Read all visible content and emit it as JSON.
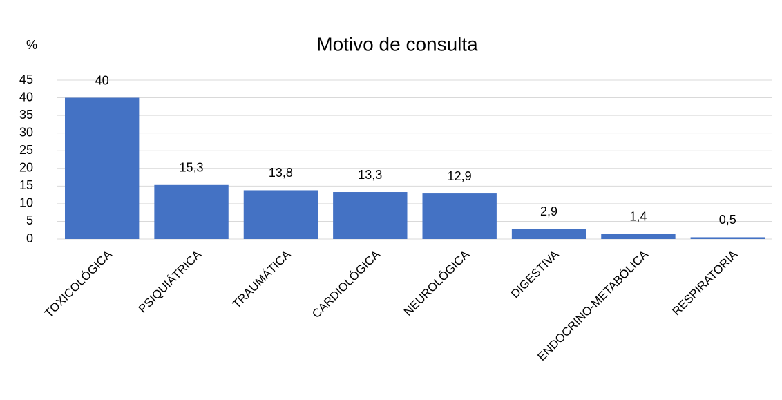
{
  "chart_data": {
    "type": "bar",
    "title": "Motivo de consulta",
    "y_label": "%",
    "categories": [
      "TOXICOLÓGICA",
      "PSIQUIÁTRICA",
      "TRAUMÁTICA",
      "CARDIOLÓGICA",
      "NEUROLÓGICA",
      "DIGESTIVA",
      "ENDOCRINO-METABÓLICA",
      "RESPIRATORIA"
    ],
    "values": [
      40,
      15.3,
      13.8,
      13.3,
      12.9,
      2.9,
      1.4,
      0.5
    ],
    "value_labels": [
      "40",
      "15,3",
      "13,8",
      "13,3",
      "12,9",
      "2,9",
      "1,4",
      "0,5"
    ],
    "color": "#4472c4",
    "ylim": [
      0,
      45
    ],
    "yticks": [
      0,
      5,
      10,
      15,
      20,
      25,
      30,
      35,
      40,
      45
    ],
    "grid": true
  }
}
